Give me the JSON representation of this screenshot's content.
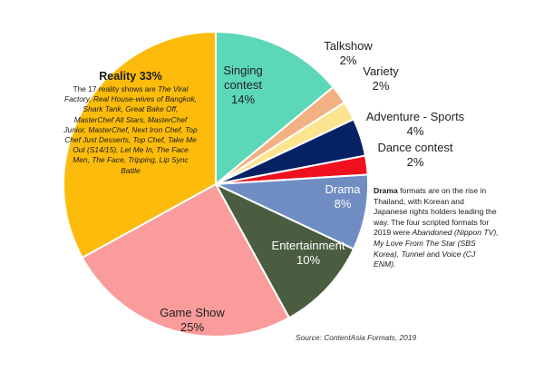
{
  "chart_data": {
    "type": "pie",
    "slices": [
      {
        "label": "Singing contest",
        "value": 14,
        "pct_text": "14%",
        "color": "#5cd7b8"
      },
      {
        "label": "Talkshow",
        "value": 2,
        "pct_text": "2%",
        "color": "#f2b183"
      },
      {
        "label": "Variety",
        "value": 2,
        "pct_text": "2%",
        "color": "#fde58f"
      },
      {
        "label": "Adventure - Sports",
        "value": 4,
        "pct_text": "4%",
        "color": "#062264"
      },
      {
        "label": "Dance contest",
        "value": 2,
        "pct_text": "2%",
        "color": "#f0101e"
      },
      {
        "label": "Drama",
        "value": 8,
        "pct_text": "8%",
        "color": "#6f8dc3"
      },
      {
        "label": "Entertainment",
        "value": 10,
        "pct_text": "10%",
        "color": "#4b5d40"
      },
      {
        "label": "Game Show",
        "value": 25,
        "pct_text": "25%",
        "color": "#f99c9b"
      },
      {
        "label": "Reality",
        "value": 33,
        "pct_text": "33%",
        "color": "#fdbc0b"
      }
    ]
  },
  "reality_note": {
    "heading": "Reality 33%",
    "line1": "The 17 reality shows are",
    "shows": "The Viral Factory, Real House-wives of Bangkok, Shark Tank, Great Bake Off, MasterChef All Stars, MasterChef Junior, MasterChef, Next Iron Chef, Top Chef Just Desserts, Top Chef, Take Me Out (S14/15), Let Me In, The Face Men, The Face, Tripping, Lip Sync Battle"
  },
  "drama_note": {
    "bold": "Drama",
    "text1": " formats are on the rise in Thailand, with Korean and Japanese rights holders leading the way. The four scripted formats for 2019 were ",
    "italic1": "Abandoned (Nippon TV), My Love From The Star (SBS Korea), Tunnel",
    "text2": " and ",
    "italic2": "Voice (CJ ENM).",
    "text3": ""
  },
  "source": "Source: ContentAsia Formats, 2019"
}
